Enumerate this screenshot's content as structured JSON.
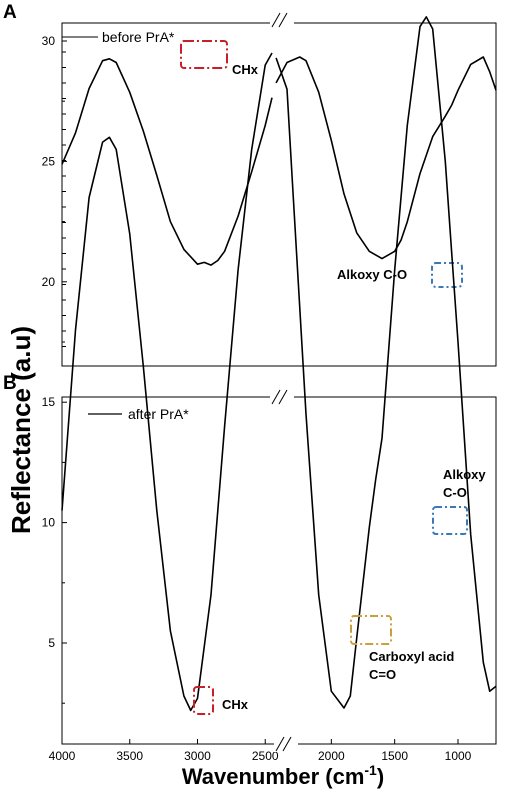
{
  "figure": {
    "ylabel": "Reflectance (a.u)",
    "xlabel": "Wavenumber (cm",
    "xlabel_sup": "-1",
    "xlabel_close": ")"
  },
  "panels": {
    "A": {
      "letter": "A",
      "legend": "before PrA*",
      "annotations": {
        "chx": "CHx",
        "alkoxy": "Alkoxy C-O"
      }
    },
    "B": {
      "letter": "B",
      "legend": "after PrA*",
      "annotations": {
        "chx": "CHx",
        "alkoxy_1": "Alkoxy",
        "alkoxy_2": "C-O",
        "carboxyl_1": "Carboxyl acid",
        "carboxyl_2": "C=O"
      }
    }
  },
  "colors": {
    "line": "#000000",
    "chx_box": "#c8202a",
    "alkoxy_box": "#3a78b8",
    "carboxyl_box": "#c8a040"
  },
  "chart_data": [
    {
      "panel": "A",
      "type": "line",
      "xlabel": "Wavenumber (cm-1)",
      "ylabel": "Reflectance (a.u)",
      "x_reversed": true,
      "x_broken_axis": [
        2450,
        2350
      ],
      "y_tick_labels_shown": false,
      "series": [
        {
          "name": "before PrA*",
          "x": [
            4000,
            3900,
            3800,
            3700,
            3650,
            3600,
            3500,
            3400,
            3300,
            3200,
            3100,
            3000,
            2950,
            2900,
            2850,
            2800,
            2700,
            2600,
            2500,
            2450,
            2420,
            2350,
            2250,
            2200,
            2100,
            2000,
            1900,
            1800,
            1700,
            1600,
            1500,
            1450,
            1400,
            1300,
            1200,
            1100,
            1050,
            1000,
            900,
            800,
            750,
            700
          ],
          "y": [
            2.2,
            3.9,
            6.3,
            7.8,
            7.9,
            7.7,
            6.1,
            4.0,
            1.6,
            -0.9,
            -2.4,
            -3.2,
            -3.1,
            -3.25,
            -3.0,
            -2.5,
            -0.6,
            1.8,
            4.3,
            5.8,
            6.6,
            7.7,
            8.0,
            7.8,
            6.1,
            3.5,
            0.6,
            -1.5,
            -2.5,
            -2.9,
            -2.5,
            -1.9,
            -0.9,
            1.7,
            3.7,
            4.8,
            5.4,
            6.2,
            7.6,
            8.0,
            7.2,
            6.2
          ]
        }
      ],
      "annotations": [
        "CHx",
        "Alkoxy C-O"
      ]
    },
    {
      "panel": "B",
      "type": "line",
      "xlabel": "Wavenumber (cm-1)",
      "ylabel": "Reflectance (a.u)",
      "x_reversed": true,
      "x_broken_axis": [
        2450,
        2350
      ],
      "xlim": [
        4000,
        700
      ],
      "x_ticks": [
        4000,
        3500,
        3000,
        2500,
        2000,
        1500,
        1000
      ],
      "ylim": [
        2,
        32.5
      ],
      "y_ticks": [
        5,
        10,
        15,
        20,
        25,
        30
      ],
      "series": [
        {
          "name": "after PrA*",
          "x": [
            4000,
            3900,
            3800,
            3700,
            3650,
            3600,
            3500,
            3400,
            3300,
            3200,
            3100,
            3050,
            3000,
            2900,
            2800,
            2700,
            2600,
            2500,
            2450,
            2420,
            2350,
            2300,
            2200,
            2100,
            2000,
            1900,
            1850,
            1800,
            1700,
            1650,
            1600,
            1500,
            1400,
            1300,
            1250,
            1200,
            1100,
            1050,
            1000,
            900,
            800,
            750,
            700
          ],
          "y": [
            10.5,
            18.0,
            23.5,
            25.8,
            26.0,
            25.5,
            22.0,
            16.5,
            10.5,
            5.5,
            2.8,
            2.2,
            2.7,
            7.0,
            14.0,
            20.5,
            25.5,
            29.0,
            29.5,
            29.3,
            28.0,
            23.5,
            14.5,
            7.0,
            3.0,
            2.3,
            2.8,
            5.2,
            9.8,
            11.8,
            13.5,
            20.5,
            26.5,
            30.6,
            31.0,
            30.5,
            25.0,
            21.2,
            17.5,
            9.5,
            4.2,
            3.0,
            3.2
          ]
        }
      ],
      "annotations": [
        "CHx",
        "Carboxyl acid C=O",
        "Alkoxy C-O"
      ]
    }
  ]
}
